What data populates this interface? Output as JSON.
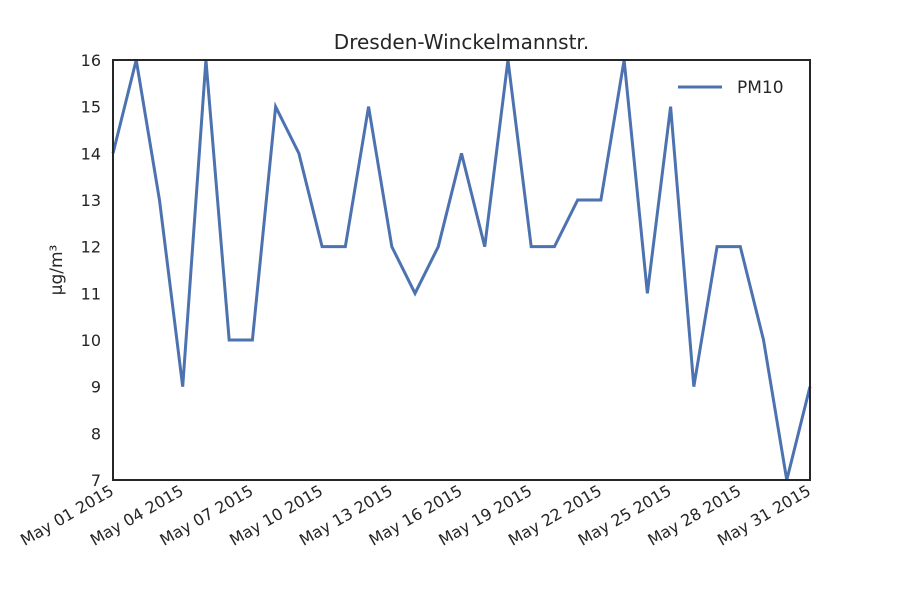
{
  "chart_data": {
    "type": "line",
    "title": "Dresden-Winckelmannstr.",
    "xlabel": "",
    "ylabel": "µg/m³",
    "x": [
      "May 01 2015",
      "May 02 2015",
      "May 03 2015",
      "May 04 2015",
      "May 05 2015",
      "May 06 2015",
      "May 07 2015",
      "May 08 2015",
      "May 09 2015",
      "May 10 2015",
      "May 11 2015",
      "May 12 2015",
      "May 13 2015",
      "May 14 2015",
      "May 15 2015",
      "May 16 2015",
      "May 17 2015",
      "May 18 2015",
      "May 19 2015",
      "May 20 2015",
      "May 21 2015",
      "May 22 2015",
      "May 23 2015",
      "May 24 2015",
      "May 25 2015",
      "May 26 2015",
      "May 27 2015",
      "May 28 2015",
      "May 29 2015",
      "May 30 2015",
      "May 31 2015"
    ],
    "series": [
      {
        "name": "PM10",
        "values": [
          14,
          16,
          13,
          9,
          16,
          10,
          10,
          15,
          14,
          12,
          12,
          15,
          12,
          11,
          12,
          14,
          12,
          16,
          12,
          12,
          13,
          13,
          16,
          11,
          15,
          9,
          12,
          12,
          10,
          7,
          9
        ]
      }
    ],
    "xticks": [
      "May 01 2015",
      "May 04 2015",
      "May 07 2015",
      "May 10 2015",
      "May 13 2015",
      "May 16 2015",
      "May 19 2015",
      "May 22 2015",
      "May 25 2015",
      "May 28 2015",
      "May 31 2015"
    ],
    "yticks": [
      7,
      8,
      9,
      10,
      11,
      12,
      13,
      14,
      15,
      16
    ],
    "ylim": [
      7,
      16
    ],
    "legend_position": "top-right",
    "grid": false,
    "line_color": "#4c72b0"
  }
}
